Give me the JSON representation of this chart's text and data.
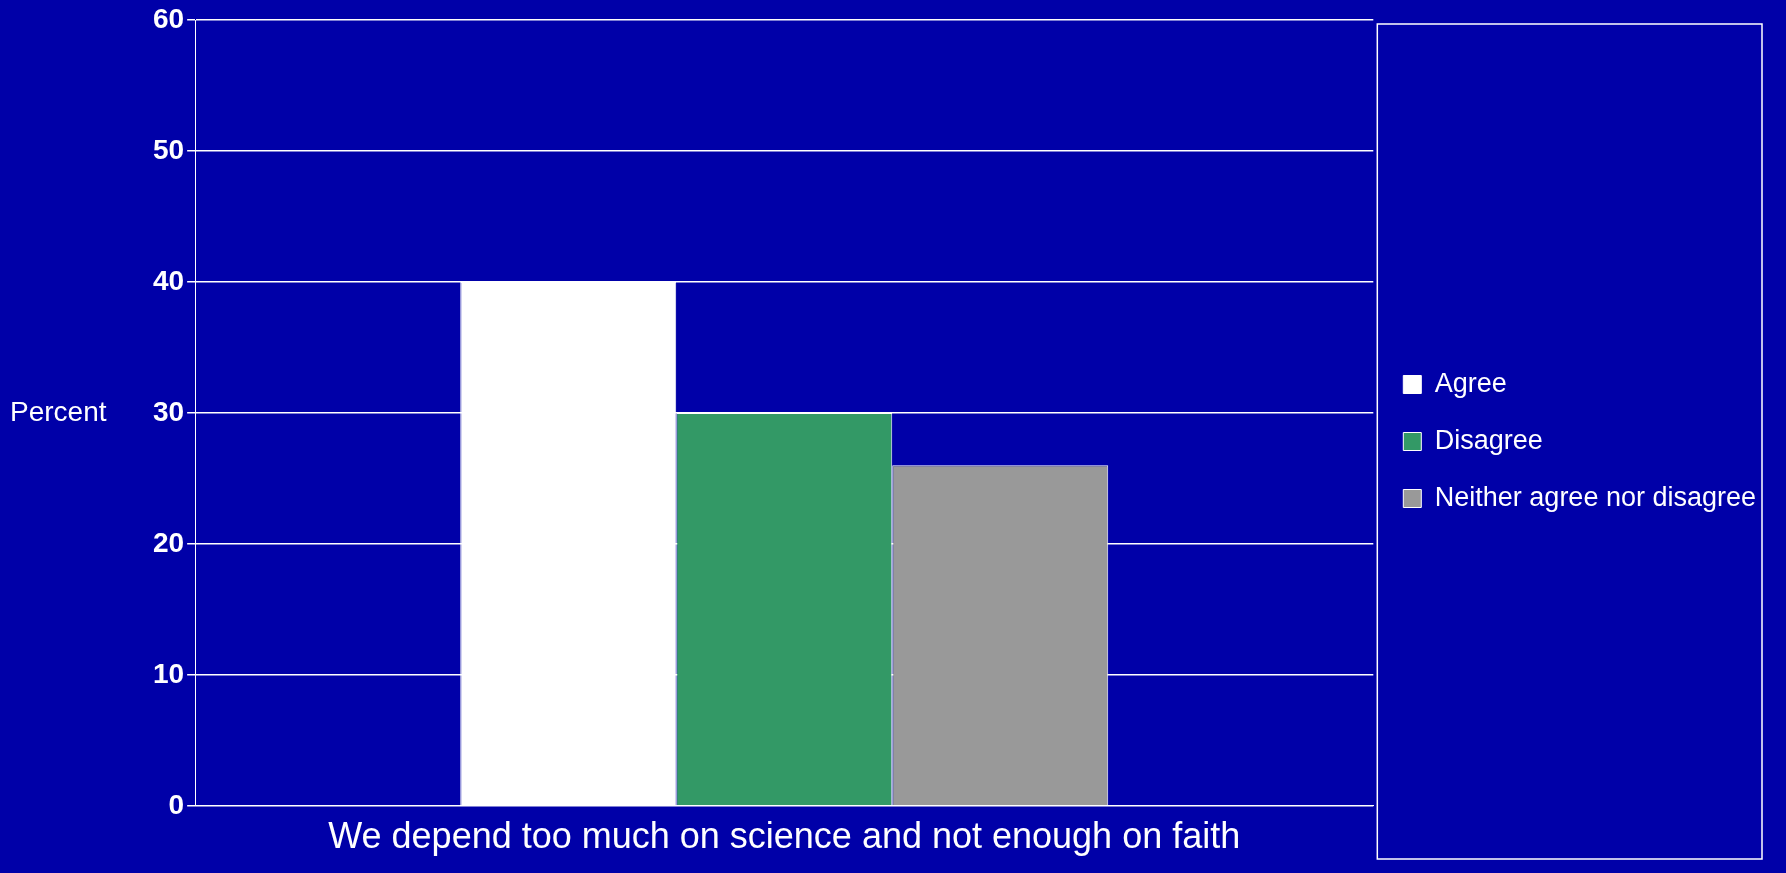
{
  "chart_data": {
    "type": "bar",
    "ylabel": "Percent",
    "categories": [
      "We depend too much on science and not enough on faith"
    ],
    "series": [
      {
        "name": "Agree",
        "color": "#ffffff",
        "values": [
          40
        ]
      },
      {
        "name": "Disagree",
        "color": "#339966",
        "values": [
          30
        ]
      },
      {
        "name": "Neither agree nor disagree",
        "color": "#999999",
        "values": [
          26
        ]
      }
    ],
    "ylim": [
      0,
      60
    ],
    "yticks": [
      0,
      10,
      20,
      30,
      40,
      50,
      60
    ],
    "grid": "y",
    "legend": "right"
  }
}
